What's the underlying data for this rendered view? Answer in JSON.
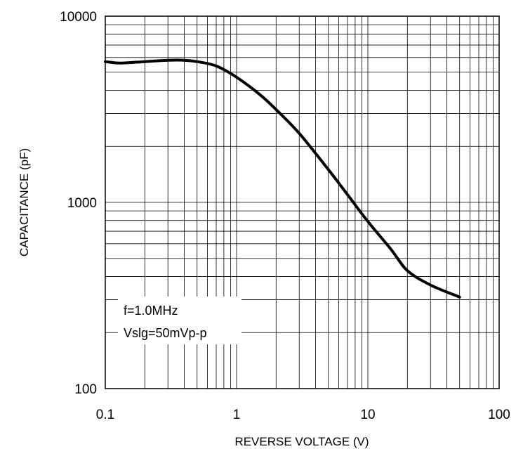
{
  "chart_data": {
    "type": "line",
    "title": "",
    "xlabel": "REVERSE VOLTAGE (V)",
    "ylabel": "CAPACITANCE (pF)",
    "xscale": "log",
    "yscale": "log",
    "xlim": [
      0.1,
      100
    ],
    "ylim": [
      100,
      10000
    ],
    "grid": true,
    "x_tick_labels": [
      "0.1",
      "1",
      "10",
      "100"
    ],
    "y_tick_labels": [
      "100",
      "1000",
      "10000"
    ],
    "annotations": [
      "f=1.0MHz",
      "Vslg=50mVp-p"
    ],
    "series": [
      {
        "x": [
          0.1,
          0.13,
          0.2,
          0.3,
          0.4,
          0.5,
          0.7,
          1.0,
          1.5,
          2.0,
          3.0,
          5.0,
          7.0,
          10.0,
          15.0,
          20.0,
          30.0,
          50.0
        ],
        "y": [
          5700,
          5600,
          5700,
          5800,
          5800,
          5700,
          5400,
          4700,
          3800,
          3150,
          2350,
          1500,
          1100,
          790,
          560,
          430,
          360,
          310
        ],
        "color": "#000000"
      }
    ]
  }
}
